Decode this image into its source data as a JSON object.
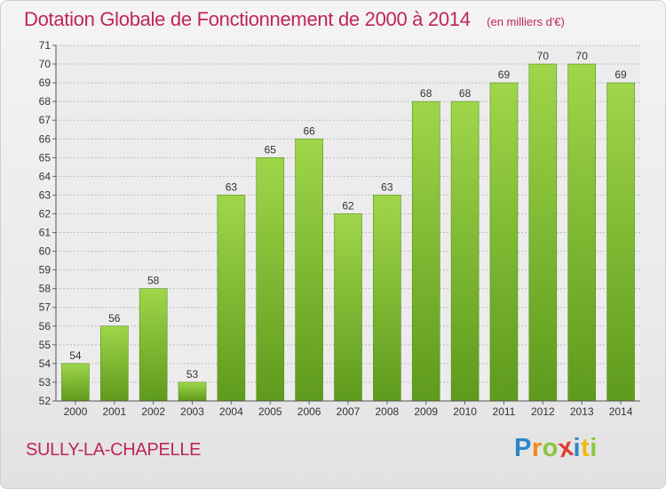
{
  "chart_data": {
    "type": "bar",
    "title": "Dotation Globale de Fonctionnement de 2000 à 2014",
    "unit_note": "(en milliers d'€)",
    "categories": [
      "2000",
      "2001",
      "2002",
      "2003",
      "2004",
      "2005",
      "2006",
      "2007",
      "2008",
      "2009",
      "2010",
      "2011",
      "2012",
      "2013",
      "2014"
    ],
    "values": [
      54,
      56,
      58,
      53,
      63,
      65,
      66,
      62,
      63,
      68,
      68,
      69,
      70,
      70,
      69
    ],
    "ylim": [
      52,
      71
    ],
    "yticks": [
      52,
      53,
      54,
      55,
      56,
      57,
      58,
      59,
      60,
      61,
      62,
      63,
      64,
      65,
      66,
      67,
      68,
      69,
      70,
      71
    ],
    "grid": true,
    "bar_color": "#7dbb2d",
    "bar_color_light": "#9fd64a",
    "bar_color_dark": "#5e9a1c"
  },
  "commune": "SULLY-LA-CHAPELLE",
  "logo": {
    "letters": [
      {
        "ch": "P",
        "color": "#2e86c9"
      },
      {
        "ch": "r",
        "color": "#f08a12"
      },
      {
        "ch": "o",
        "color": "#8cc63f"
      },
      {
        "ch": "x",
        "color": "#e23a2e"
      },
      {
        "ch": "i",
        "color": "#2e86c9"
      },
      {
        "ch": "t",
        "color": "#f0b712"
      },
      {
        "ch": "i",
        "color": "#8cc63f"
      }
    ]
  }
}
